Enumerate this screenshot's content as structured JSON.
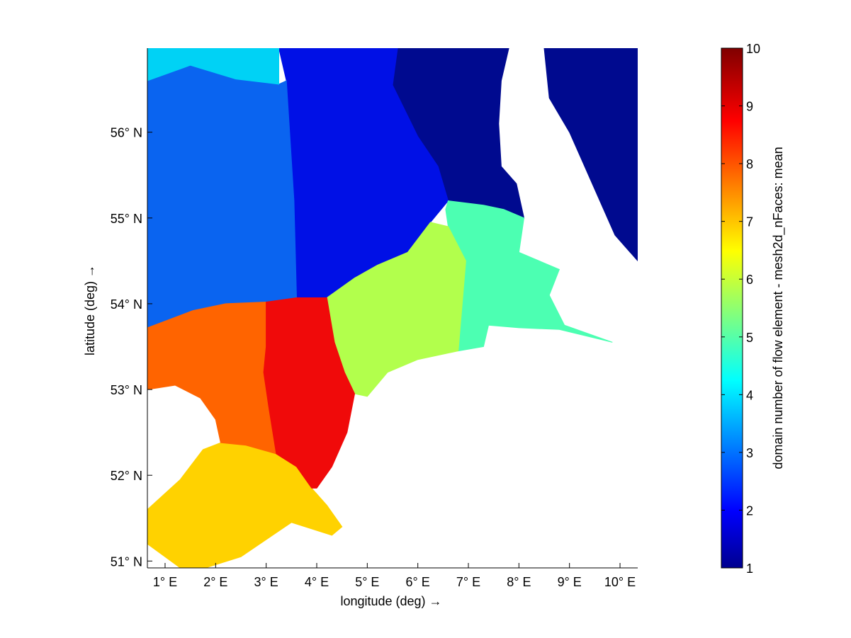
{
  "chart_data": {
    "type": "heatmap",
    "title": "",
    "xlabel": "longitude (deg) →",
    "ylabel": "latitude (deg) →",
    "xlim": [
      0.65,
      10.35
    ],
    "ylim": [
      50.92,
      56.98
    ],
    "x_ticks": [
      {
        "value": 1,
        "label": "1° E"
      },
      {
        "value": 2,
        "label": "2° E"
      },
      {
        "value": 3,
        "label": "3° E"
      },
      {
        "value": 4,
        "label": "4° E"
      },
      {
        "value": 5,
        "label": "5° E"
      },
      {
        "value": 6,
        "label": "6° E"
      },
      {
        "value": 7,
        "label": "7° E"
      },
      {
        "value": 8,
        "label": "8° E"
      },
      {
        "value": 9,
        "label": "9° E"
      },
      {
        "value": 10,
        "label": "10° E"
      }
    ],
    "y_ticks": [
      {
        "value": 51,
        "label": "51° N"
      },
      {
        "value": 52,
        "label": "52° N"
      },
      {
        "value": 53,
        "label": "53° N"
      },
      {
        "value": 54,
        "label": "54° N"
      },
      {
        "value": 55,
        "label": "55° N"
      },
      {
        "value": 56,
        "label": "56° N"
      }
    ],
    "colorbar": {
      "label": "domain number of flow element - mesh2d_nFaces: mean",
      "colormap": "jet",
      "range": [
        1,
        10
      ],
      "ticks": [
        1,
        2,
        3,
        4,
        5,
        6,
        7,
        8,
        9,
        10
      ]
    },
    "regions": [
      {
        "domain": 1,
        "color": "#000a8f",
        "polygon": [
          [
            5.6,
            56.98
          ],
          [
            7.8,
            56.98
          ],
          [
            7.65,
            56.6
          ],
          [
            7.6,
            56.1
          ],
          [
            7.65,
            55.6
          ],
          [
            7.95,
            55.4
          ],
          [
            8.1,
            55.0
          ],
          [
            7.7,
            55.1
          ],
          [
            7.3,
            55.15
          ],
          [
            6.6,
            55.2
          ],
          [
            6.4,
            55.6
          ],
          [
            6.0,
            55.95
          ],
          [
            5.5,
            56.55
          ]
        ]
      },
      {
        "domain": 1,
        "color": "#000a8f",
        "polygon": [
          [
            8.5,
            56.98
          ],
          [
            8.6,
            56.4
          ],
          [
            8.8,
            56.2
          ],
          [
            9.0,
            56.0
          ],
          [
            9.3,
            55.6
          ],
          [
            9.6,
            55.2
          ],
          [
            9.9,
            54.8
          ],
          [
            10.35,
            54.5
          ],
          [
            10.35,
            56.98
          ]
        ]
      },
      {
        "domain": 2,
        "color": "#0010e6",
        "polygon": [
          [
            3.4,
            56.98
          ],
          [
            5.6,
            56.98
          ],
          [
            5.5,
            56.55
          ],
          [
            6.0,
            55.95
          ],
          [
            6.4,
            55.6
          ],
          [
            6.6,
            55.2
          ],
          [
            6.25,
            54.95
          ],
          [
            5.8,
            54.6
          ],
          [
            5.2,
            54.45
          ],
          [
            4.75,
            54.3
          ],
          [
            4.2,
            54.07
          ],
          [
            3.6,
            54.07
          ],
          [
            3.55,
            55.2
          ],
          [
            3.4,
            56.6
          ],
          [
            3.25,
            56.98
          ]
        ]
      },
      {
        "domain": 3,
        "color": "#0a64f0",
        "polygon": [
          [
            0.65,
            56.6
          ],
          [
            1.5,
            56.78
          ],
          [
            2.4,
            56.62
          ],
          [
            3.25,
            56.56
          ],
          [
            3.4,
            56.6
          ],
          [
            3.55,
            55.2
          ],
          [
            3.6,
            54.07
          ],
          [
            3.0,
            54.02
          ],
          [
            2.2,
            54.0
          ],
          [
            1.55,
            53.92
          ],
          [
            0.65,
            53.72
          ]
        ]
      },
      {
        "domain": 4,
        "color": "#00d2f5",
        "polygon": [
          [
            0.65,
            56.98
          ],
          [
            3.25,
            56.98
          ],
          [
            3.25,
            56.56
          ],
          [
            2.4,
            56.62
          ],
          [
            1.5,
            56.78
          ],
          [
            0.65,
            56.6
          ]
        ]
      },
      {
        "domain": 5,
        "color": "#4cffb2",
        "polygon": [
          [
            6.6,
            55.2
          ],
          [
            7.3,
            55.15
          ],
          [
            7.7,
            55.1
          ],
          [
            8.1,
            55.0
          ],
          [
            8.0,
            54.6
          ],
          [
            8.8,
            54.4
          ],
          [
            8.6,
            54.1
          ],
          [
            8.9,
            53.75
          ],
          [
            9.85,
            53.55
          ],
          [
            8.8,
            53.7
          ],
          [
            8.0,
            53.72
          ],
          [
            7.4,
            53.75
          ],
          [
            7.3,
            53.5
          ],
          [
            6.8,
            53.45
          ],
          [
            6.95,
            54.5
          ],
          [
            6.6,
            54.9
          ],
          [
            6.55,
            55.1
          ]
        ]
      },
      {
        "domain": 6,
        "color": "#b2ff4c",
        "polygon": [
          [
            4.2,
            54.07
          ],
          [
            4.75,
            54.3
          ],
          [
            5.2,
            54.45
          ],
          [
            5.8,
            54.6
          ],
          [
            6.25,
            54.95
          ],
          [
            6.6,
            54.9
          ],
          [
            6.95,
            54.5
          ],
          [
            6.8,
            53.45
          ],
          [
            6.0,
            53.35
          ],
          [
            5.4,
            53.2
          ],
          [
            5.0,
            52.92
          ],
          [
            4.75,
            52.95
          ],
          [
            4.55,
            53.2
          ],
          [
            4.35,
            53.55
          ]
        ]
      },
      {
        "domain": 7,
        "color": "#ffd200",
        "polygon": [
          [
            0.65,
            51.6
          ],
          [
            1.3,
            51.95
          ],
          [
            1.75,
            52.3
          ],
          [
            2.1,
            52.38
          ],
          [
            2.6,
            52.35
          ],
          [
            3.2,
            52.25
          ],
          [
            3.6,
            52.1
          ],
          [
            3.9,
            51.85
          ],
          [
            4.2,
            51.65
          ],
          [
            4.5,
            51.4
          ],
          [
            4.3,
            51.3
          ],
          [
            3.5,
            51.45
          ],
          [
            2.5,
            51.05
          ],
          [
            1.8,
            50.92
          ],
          [
            1.3,
            50.92
          ],
          [
            0.65,
            51.2
          ]
        ]
      },
      {
        "domain": 8,
        "color": "#ff6400",
        "polygon": [
          [
            0.65,
            53.72
          ],
          [
            1.55,
            53.92
          ],
          [
            2.2,
            54.0
          ],
          [
            3.0,
            54.02
          ],
          [
            3.0,
            53.5
          ],
          [
            2.95,
            53.2
          ],
          [
            3.05,
            52.8
          ],
          [
            3.2,
            52.25
          ],
          [
            2.6,
            52.35
          ],
          [
            2.1,
            52.38
          ],
          [
            2.0,
            52.65
          ],
          [
            1.7,
            52.9
          ],
          [
            1.2,
            53.05
          ],
          [
            0.65,
            53.0
          ]
        ]
      },
      {
        "domain": 9,
        "color": "#f00a0a",
        "polygon": [
          [
            3.0,
            54.02
          ],
          [
            3.6,
            54.07
          ],
          [
            4.2,
            54.07
          ],
          [
            4.35,
            53.55
          ],
          [
            4.55,
            53.2
          ],
          [
            4.75,
            52.95
          ],
          [
            4.6,
            52.5
          ],
          [
            4.3,
            52.1
          ],
          [
            4.0,
            51.85
          ],
          [
            3.9,
            51.85
          ],
          [
            3.6,
            52.1
          ],
          [
            3.2,
            52.25
          ],
          [
            3.05,
            52.8
          ],
          [
            2.95,
            53.2
          ],
          [
            3.0,
            53.5
          ]
        ]
      }
    ]
  }
}
